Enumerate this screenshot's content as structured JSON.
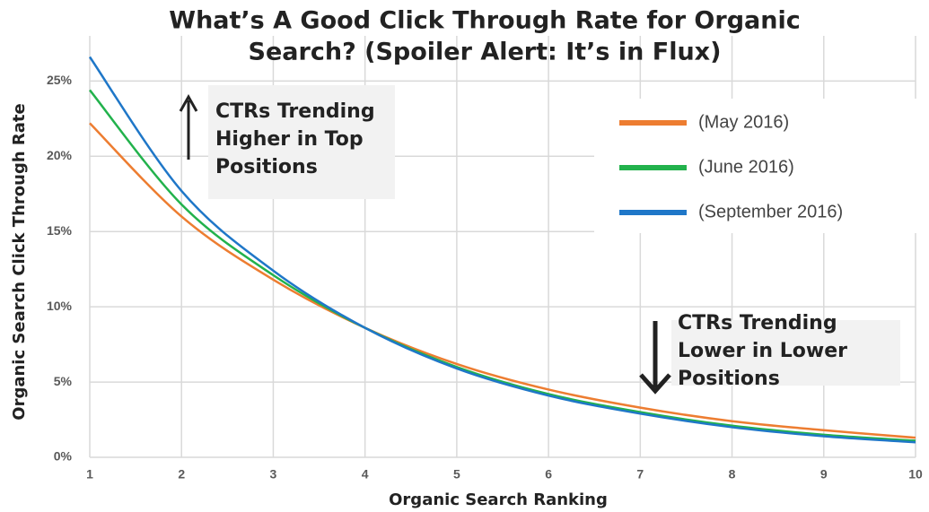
{
  "chart_data": {
    "type": "line",
    "title": [
      "What’s A Good Click Through Rate for Organic",
      "Search? (Spoiler Alert: It’s in Flux)"
    ],
    "x_label": "Organic Search Ranking",
    "y_label": "Organic Search Click Through Rate",
    "x": [
      1,
      2,
      3,
      4,
      5,
      6,
      7,
      8,
      9,
      10
    ],
    "series": [
      {
        "name": "(May 2016)",
        "color": "#ed7d31",
        "values": [
          22.2,
          16.0,
          11.8,
          8.6,
          6.2,
          4.5,
          3.3,
          2.4,
          1.8,
          1.3
        ]
      },
      {
        "name": "(June 2016)",
        "color": "#22b24c",
        "values": [
          24.4,
          16.8,
          12.1,
          8.6,
          6.0,
          4.2,
          3.0,
          2.1,
          1.5,
          1.1
        ]
      },
      {
        "name": "(September 2016)",
        "color": "#1f77c8",
        "values": [
          26.6,
          17.7,
          12.4,
          8.6,
          5.9,
          4.1,
          2.9,
          2.0,
          1.4,
          1.0
        ]
      }
    ],
    "xlim": [
      1,
      10
    ],
    "xticks": [
      1,
      2,
      3,
      4,
      5,
      6,
      7,
      8,
      9,
      10
    ],
    "ylim": [
      0,
      28
    ],
    "yticks": [
      {
        "value": 0,
        "label": "0%"
      },
      {
        "value": 5,
        "label": "5%"
      },
      {
        "value": 10,
        "label": "10%"
      },
      {
        "value": 15,
        "label": "15%"
      },
      {
        "value": 20,
        "label": "20%"
      },
      {
        "value": 25,
        "label": "25%"
      }
    ],
    "grid": true,
    "legend": "upper right",
    "annotations": [
      [
        "CTRs Trending",
        "Higher in Top",
        "Positions"
      ],
      [
        "CTRs Trending",
        "Lower in Lower",
        "Positions"
      ]
    ]
  }
}
